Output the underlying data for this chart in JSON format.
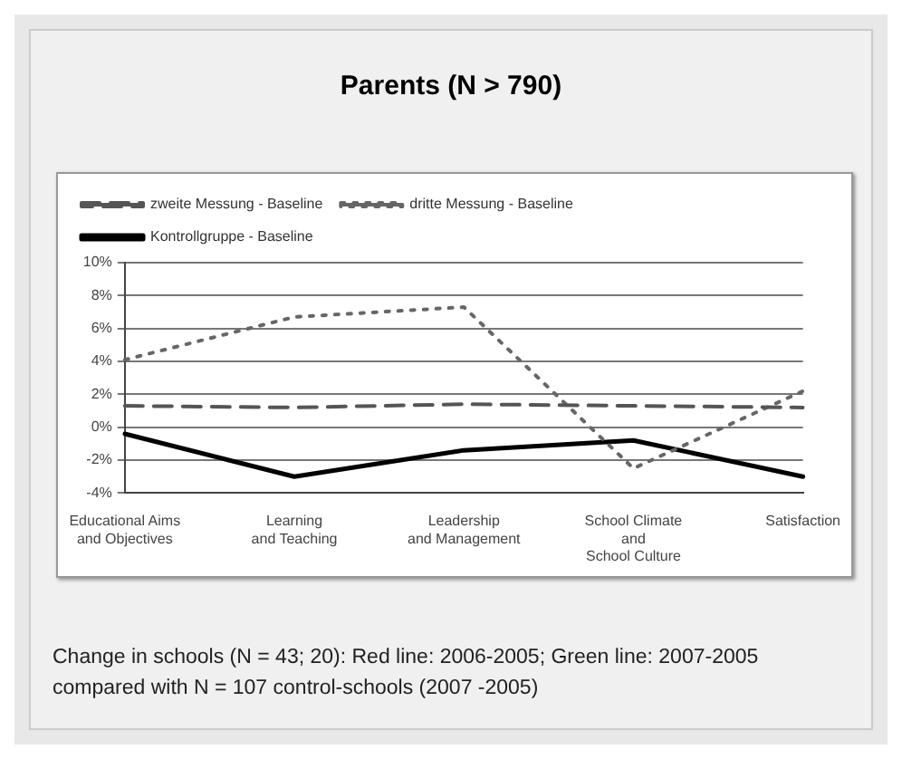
{
  "chart_data": {
    "type": "line",
    "title": "Parents  (N > 790)",
    "categories": [
      "Educational Aims and Objectives",
      "Learning and Teaching",
      "Leadership and Management",
      "School Climate and School Culture",
      "Satisfaction"
    ],
    "series": [
      {
        "name": "zweite Messung - Baseline",
        "color": "#555555",
        "line_style": "dashed",
        "values": [
          1.3,
          1.2,
          1.4,
          1.3,
          1.2
        ]
      },
      {
        "name": "dritte Messung - Baseline",
        "color": "#666666",
        "line_style": "dotted",
        "values": [
          4.1,
          6.7,
          7.3,
          -2.5,
          2.2
        ]
      },
      {
        "name": "Kontrollgruppe - Baseline",
        "color": "#000000",
        "line_style": "solid",
        "values": [
          -0.4,
          -3.0,
          -1.4,
          -0.8,
          -3.0
        ]
      }
    ],
    "ylim": [
      -4,
      10
    ],
    "yticks": [
      {
        "value": -4,
        "label": "-4%"
      },
      {
        "value": -2,
        "label": "-2%"
      },
      {
        "value": 0,
        "label": "0%"
      },
      {
        "value": 2,
        "label": "2%"
      },
      {
        "value": 4,
        "label": "4%"
      },
      {
        "value": 6,
        "label": "6%"
      },
      {
        "value": 8,
        "label": "8%"
      },
      {
        "value": 10,
        "label": "10%"
      }
    ],
    "grid": "y",
    "legend": "top",
    "marker": "none",
    "annotations": [
      "Change in schools (N = 43; 20): Red line: 2006-2005; Green line: 2007-2005 compared with N = 107 control-schools (2007 -2005)"
    ]
  }
}
